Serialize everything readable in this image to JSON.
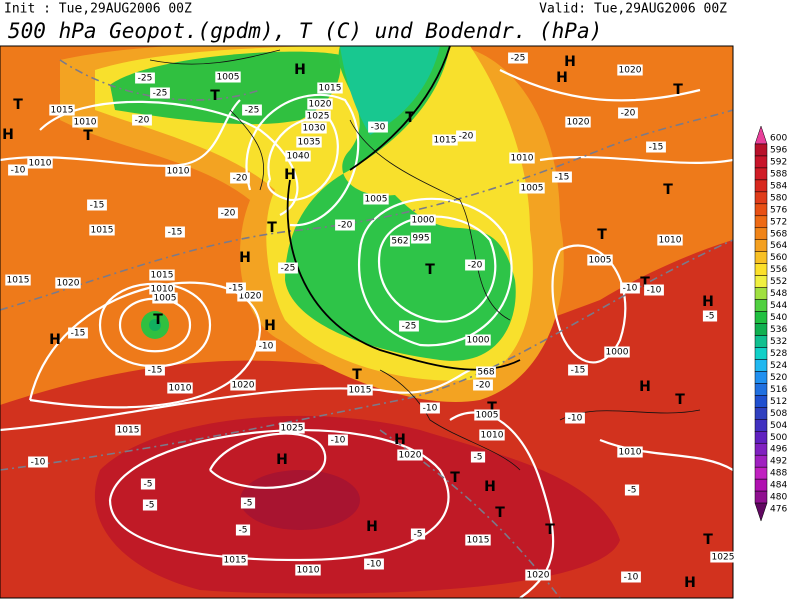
{
  "header": {
    "init": "Init : Tue,29AUG2006 00Z",
    "valid": "Valid: Tue,29AUG2006 00Z",
    "title": "500 hPa Geopot.(gpdm), T (C) und Bodendr. (hPa)"
  },
  "legend": {
    "labels": [
      600,
      596,
      592,
      588,
      584,
      580,
      576,
      572,
      568,
      564,
      560,
      556,
      552,
      548,
      544,
      540,
      536,
      532,
      528,
      524,
      520,
      516,
      512,
      508,
      504,
      500,
      496,
      492,
      488,
      484,
      480,
      476
    ],
    "colors": [
      "#e8409a",
      "#b8102a",
      "#c8142a",
      "#d01c26",
      "#d8281e",
      "#e03c1a",
      "#e85014",
      "#ee6a14",
      "#f08418",
      "#f4a020",
      "#f8c024",
      "#fce02a",
      "#f0f040",
      "#a0e040",
      "#50d040",
      "#20c040",
      "#10b050",
      "#10c090",
      "#10d0c8",
      "#20b8f0",
      "#2090f0",
      "#2070e0",
      "#2050d0",
      "#3040c0",
      "#4030c0",
      "#6020c0",
      "#8020c0",
      "#a020c0",
      "#c020c0",
      "#b010b0",
      "#901090",
      "#600860"
    ]
  },
  "map": {
    "labels": [
      "T",
      "H",
      "1015",
      "1010",
      "T",
      "-20",
      "-25",
      "-25",
      "1005",
      "T",
      "-25",
      "H",
      "1015",
      "1020",
      "1025",
      "1030",
      "1035",
      "1040",
      "H",
      "-30",
      "T",
      "1015",
      "-20",
      "1010",
      "1005",
      "-15",
      "1020",
      "H",
      "T",
      "-15",
      "T",
      "-20",
      "-20",
      "T",
      "H",
      "-25",
      "1020",
      "-15",
      "-15",
      "-15",
      "1015",
      "1010",
      "-10",
      "1010",
      "1020",
      "1015",
      "H",
      "-15",
      "1015",
      "1010",
      "1005",
      "T",
      "1010",
      "-15",
      "-10",
      "H",
      "1020",
      "T",
      "1015",
      "1015",
      "-20",
      "1005",
      "1000",
      "562",
      "995",
      "T",
      "-20",
      "-25",
      "1000",
      "568",
      "-20",
      "T",
      "1005",
      "1010",
      "-10",
      "H",
      "1025",
      "-10",
      "H",
      "1020",
      "T",
      "H",
      "-5",
      "1005",
      "T",
      "1010",
      "T",
      "-10",
      "-10",
      "H",
      "-5",
      "1000",
      "-15",
      "H",
      "T",
      "-10",
      "1010",
      "-5",
      "-10",
      "-5",
      "-5",
      "-5",
      "-5",
      "T",
      "H",
      "-5",
      "1015",
      "T",
      "1020",
      "1015",
      "-10",
      "1010",
      "-10",
      "H",
      "T",
      "1025",
      "-25",
      "H",
      "1020",
      "-20"
    ]
  }
}
